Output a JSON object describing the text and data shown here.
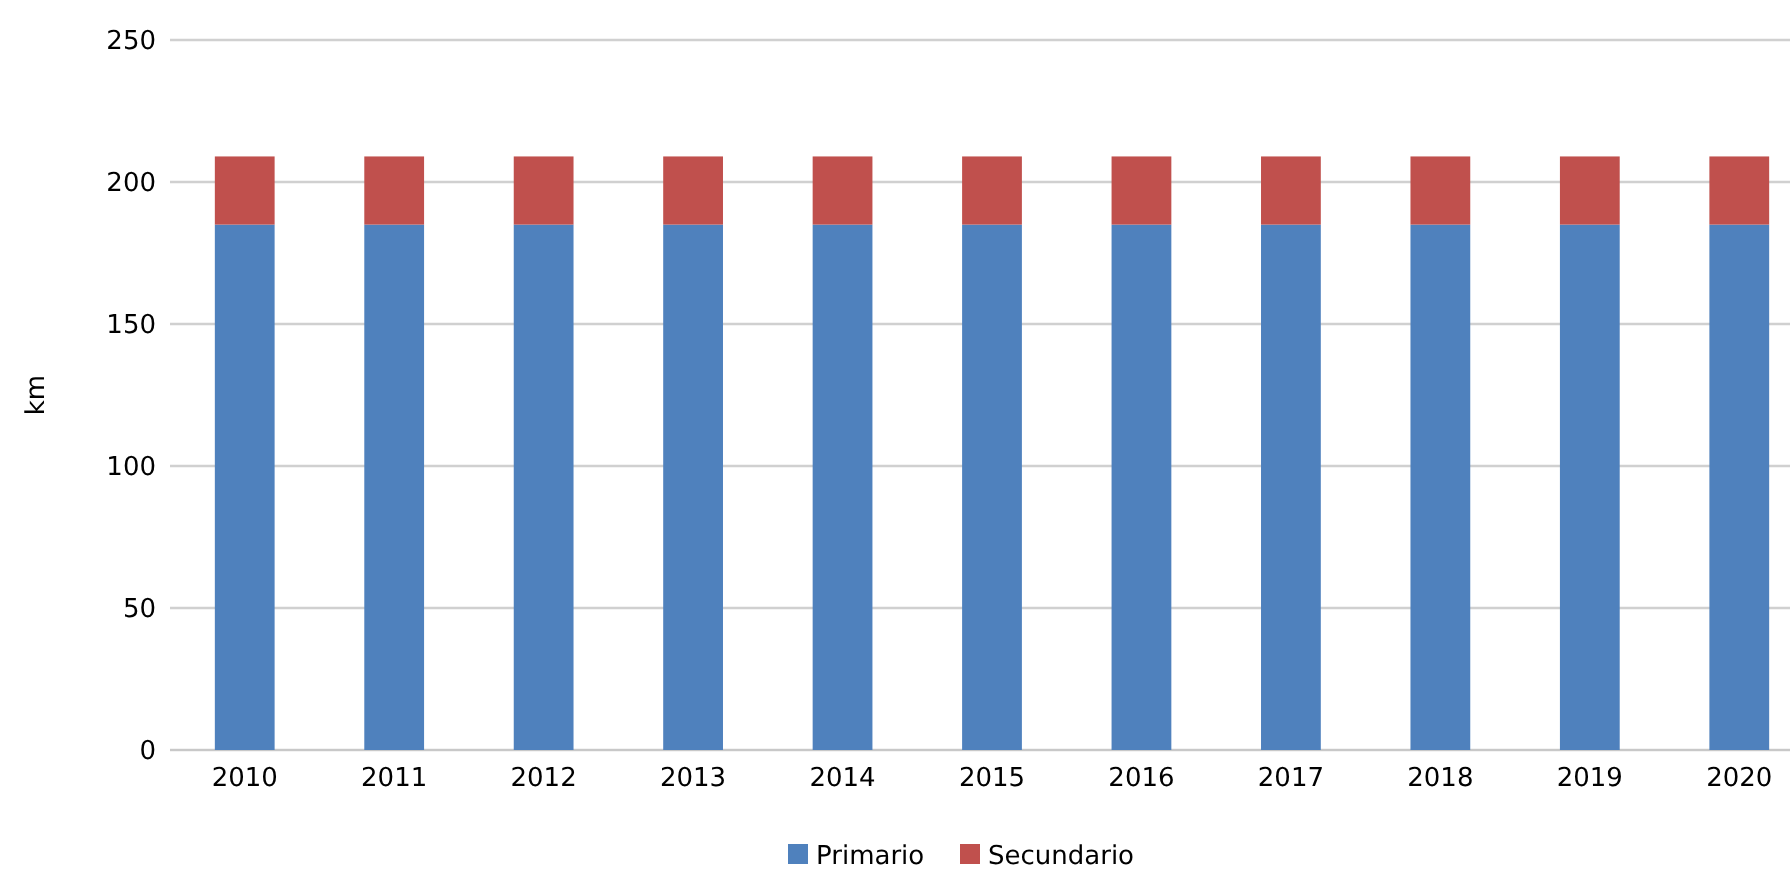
{
  "chart_data": {
    "type": "bar",
    "ylabel": "km",
    "stacked": true,
    "categories": [
      "2010",
      "2011",
      "2012",
      "2013",
      "2014",
      "2015",
      "2016",
      "2017",
      "2018",
      "2019",
      "2020"
    ],
    "series": [
      {
        "name": "Primario",
        "color": "#4f81bd",
        "values": [
          185,
          185,
          185,
          185,
          185,
          185,
          185,
          185,
          185,
          185,
          185
        ]
      },
      {
        "name": "Secundario",
        "color": "#c0504d",
        "values": [
          24,
          24,
          24,
          24,
          24,
          24,
          24,
          24,
          24,
          24,
          24
        ]
      }
    ],
    "ylim": [
      0,
      250
    ],
    "yticks": [
      0,
      50,
      100,
      150,
      200,
      250
    ],
    "grid": "y",
    "legend": "bottom"
  }
}
